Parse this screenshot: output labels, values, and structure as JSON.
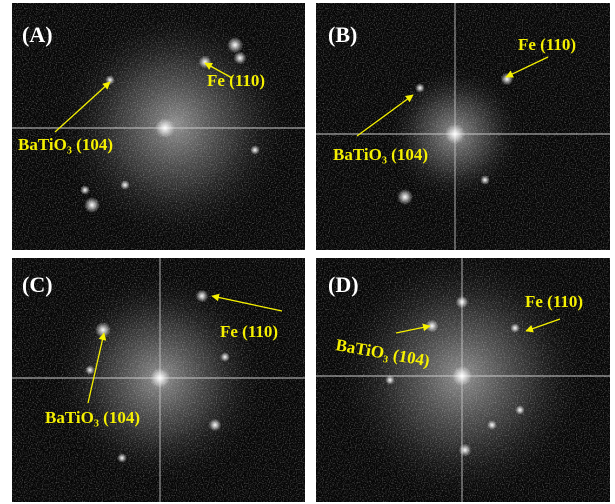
{
  "panels": [
    {
      "label": "(A)",
      "annotations": [
        "Fe (110)",
        "BaTiO₃ (104)"
      ]
    },
    {
      "label": "(B)",
      "annotations": [
        "Fe (110)",
        "BaTiO₃ (104)"
      ]
    },
    {
      "label": "(C)",
      "annotations": [
        "Fe (110)",
        "BaTiO₃ (104)"
      ]
    },
    {
      "label": "(D)",
      "annotations": [
        "Fe (110)",
        "BaTiO₃ (104)"
      ]
    }
  ]
}
